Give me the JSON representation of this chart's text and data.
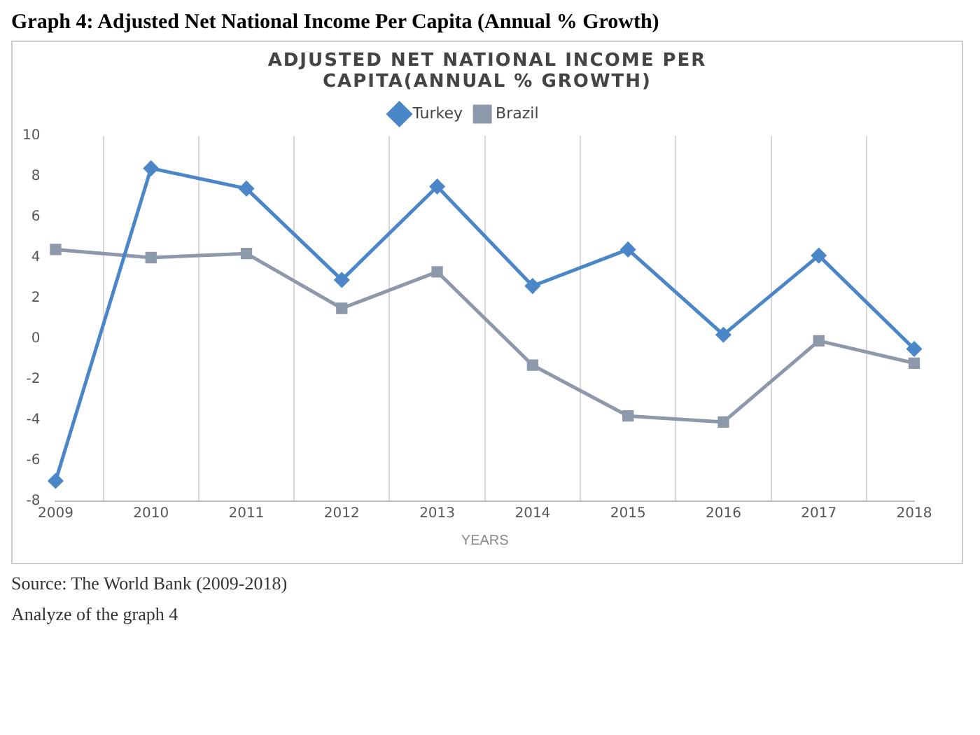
{
  "chart_data": {
    "type": "line",
    "title": "Graph 4: Adjusted Net National Income Per Capita (Annual % Growth)",
    "subtitle": "ADJUSTED NET NATIONAL INCOME PER CAPITA(ANNUAL % GROWTH)",
    "xlabel": "YEARS",
    "categories": [
      "2009",
      "2010",
      "2011",
      "2012",
      "2013",
      "2014",
      "2015",
      "2016",
      "2017",
      "2018"
    ],
    "series": [
      {
        "name": "Turkey",
        "color": "#4a86c8",
        "marker": "diamond",
        "values": [
          -7.0,
          8.4,
          7.4,
          2.9,
          7.5,
          2.6,
          4.4,
          0.2,
          4.1,
          -0.5
        ]
      },
      {
        "name": "Brazil",
        "color": "#8d98aa",
        "marker": "square",
        "values": [
          4.4,
          4.0,
          4.2,
          1.5,
          3.3,
          -1.3,
          -3.8,
          -4.1,
          -0.1,
          -1.2
        ]
      }
    ],
    "ylim": [
      -8,
      10
    ],
    "yticks": [
      -8,
      -6,
      -4,
      -2,
      0,
      2,
      4,
      6,
      8,
      10
    ],
    "grid": "x",
    "legend": "top",
    "line_style": "solid",
    "annotations": [
      "Source: The World Bank (2009-2018)",
      "Analyze of the graph 4"
    ]
  }
}
